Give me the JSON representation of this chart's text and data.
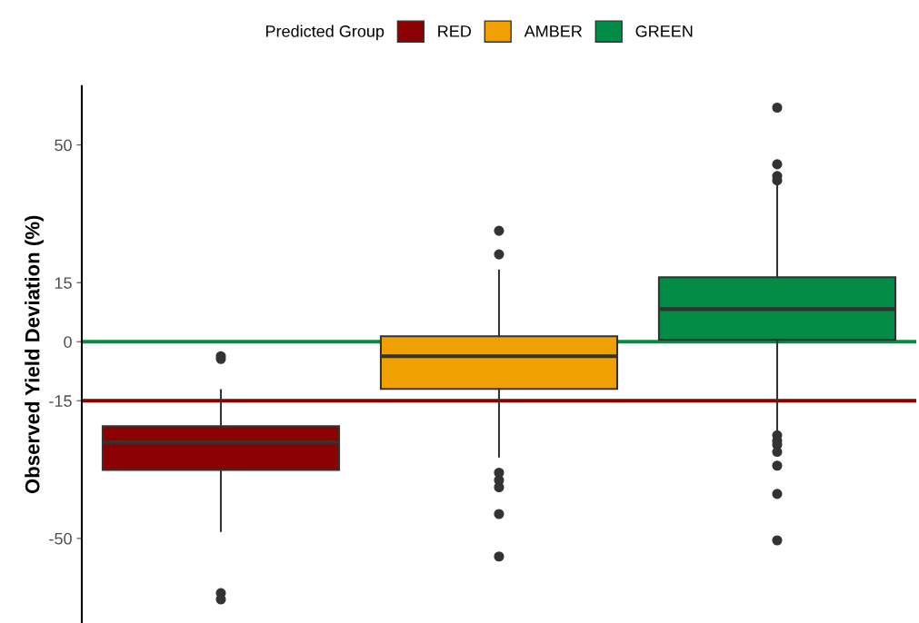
{
  "chart_data": {
    "type": "box",
    "ylabel": "Observed Yield Deviation (%)",
    "legend_title": "Predicted Group",
    "legend": "top",
    "grid": false,
    "tick_labels": "y",
    "categories": [
      null,
      null,
      null
    ],
    "ylim": [
      -71.5,
      65
    ],
    "yticks": [
      -50,
      -15,
      0,
      15,
      50
    ],
    "series": [
      {
        "name": "RED",
        "color": "#8b0000",
        "boxes": [
          {
            "low": -48.1,
            "q1": -32.6,
            "median": -25.5,
            "q3": -21.5,
            "high": -12.3,
            "outliers": [
              -3.7,
              -4.4,
              -63.9,
              -65.5
            ]
          },
          null,
          null
        ]
      },
      {
        "name": "AMBER",
        "color": "#f0a000",
        "boxes": [
          null,
          {
            "low": -29.2,
            "q1": -12.0,
            "median": -3.7,
            "q3": 1.4,
            "high": 18.1,
            "outliers": [
              28.2,
              22.2,
              -33.3,
              -35.2,
              -37.0,
              -43.8,
              -54.6
            ]
          },
          null
        ]
      },
      {
        "name": "GREEN",
        "color": "#038c45",
        "boxes": [
          null,
          null,
          {
            "low": -22.9,
            "q1": 0.5,
            "median": 8.3,
            "q3": 16.4,
            "high": 39.8,
            "outliers": [
              59.5,
              45.1,
              42.1,
              41.0,
              -23.8,
              -25.2,
              -26.2,
              -28.0,
              -31.5,
              -38.7,
              -50.5
            ]
          }
        ]
      }
    ],
    "ref_lines": [
      {
        "axis": "y",
        "value": 0,
        "color": "#038c45"
      },
      {
        "axis": "y",
        "value": -15,
        "color": "#8b0000"
      }
    ]
  }
}
